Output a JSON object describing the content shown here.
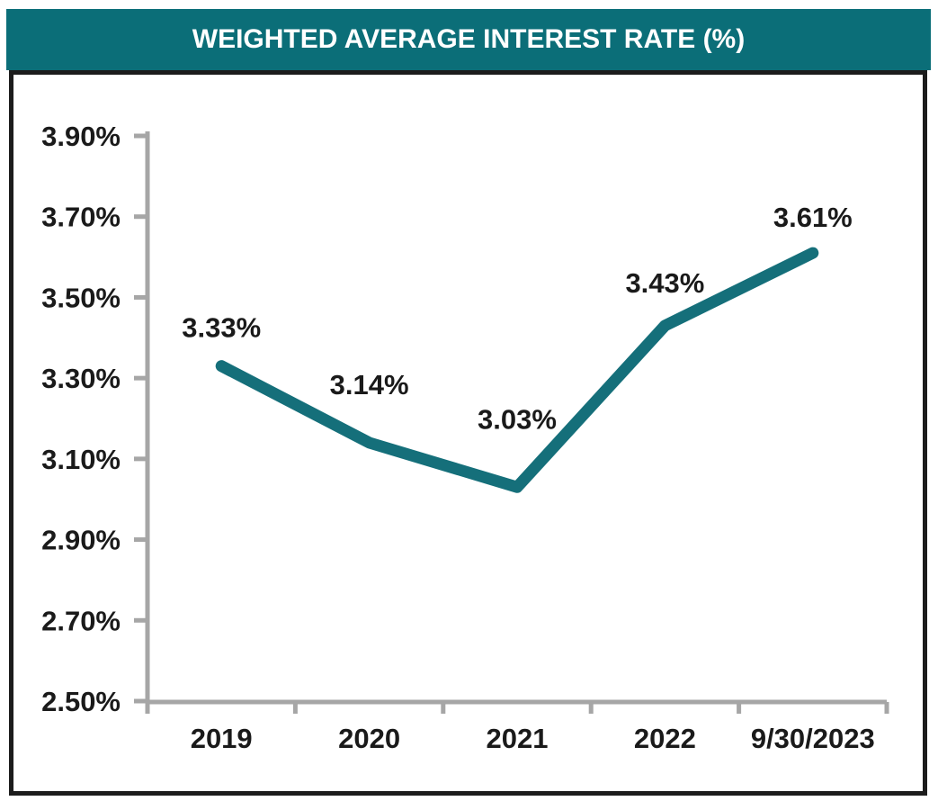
{
  "header": {
    "title": "WEIGHTED AVERAGE INTEREST RATE (%)"
  },
  "colors": {
    "banner_teal": "#0B6E78",
    "title_text": "#FFFFFF",
    "frame_border": "#1C1C1C",
    "background": "#FFFFFF"
  },
  "chart_data": {
    "type": "line",
    "title": "WEIGHTED AVERAGE INTEREST RATE (%)",
    "categories": [
      "2019",
      "2020",
      "2021",
      "2022",
      "9/30/2023"
    ],
    "series": [
      {
        "name": "Weighted Average Interest Rate (%)",
        "values": [
          3.33,
          3.14,
          3.03,
          3.43,
          3.61
        ]
      }
    ],
    "data_labels": [
      "3.33%",
      "3.14%",
      "3.03%",
      "3.43%",
      "3.61%"
    ],
    "y_tick_labels": [
      "2.50%",
      "2.70%",
      "2.90%",
      "3.10%",
      "3.30%",
      "3.50%",
      "3.70%",
      "3.90%"
    ],
    "y_tick_values": [
      2.5,
      2.7,
      2.9,
      3.1,
      3.3,
      3.5,
      3.7,
      3.9
    ],
    "ylim": [
      2.5,
      3.9
    ],
    "xlabel": "",
    "ylabel": "",
    "grid": false,
    "legend": "none",
    "line_color": "#156F7A",
    "axis_color": "#A6A6A6",
    "label_color": "#1A1A1A"
  }
}
